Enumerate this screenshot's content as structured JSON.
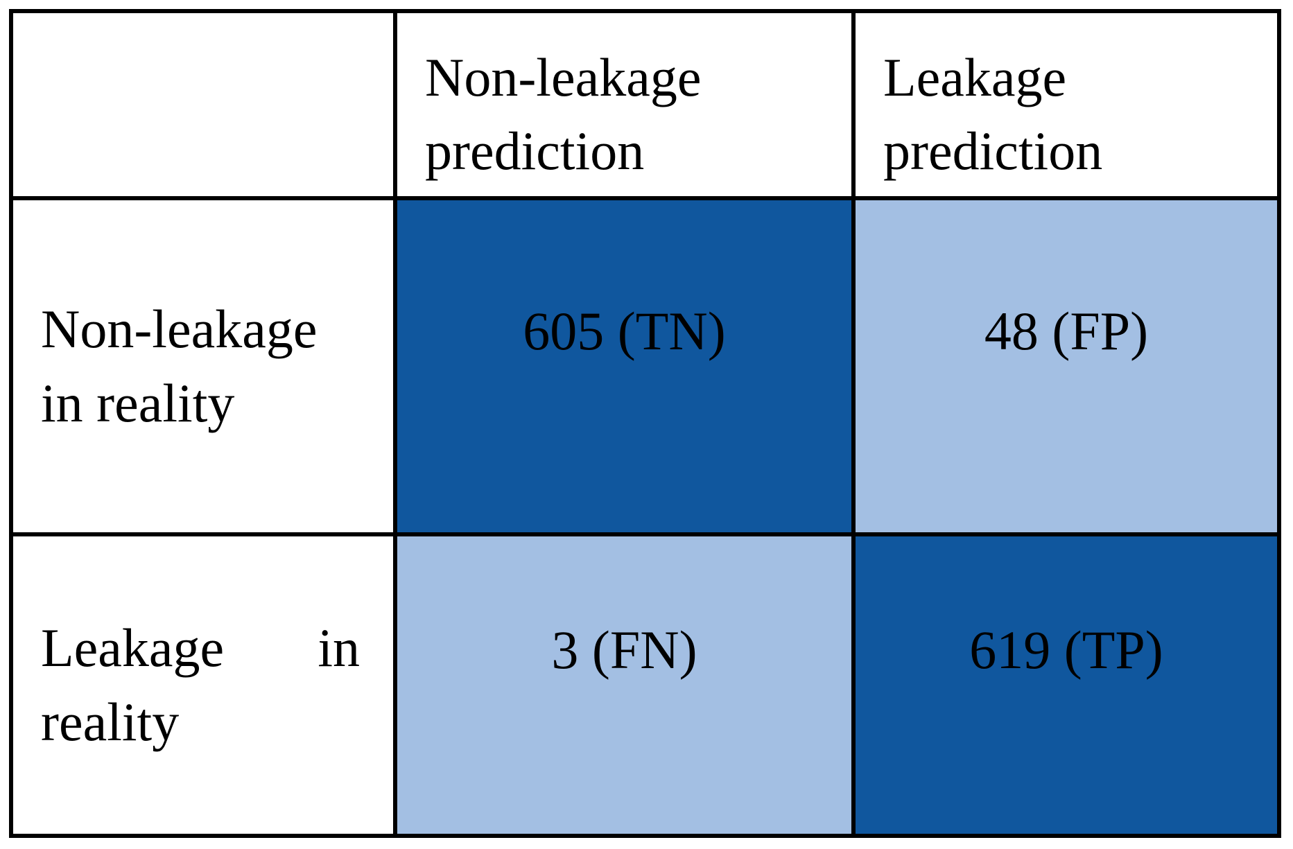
{
  "colors": {
    "dark_blue": "#10579E",
    "light_blue": "#A3BFE3",
    "border": "#000000",
    "text": "#000000",
    "background": "#FFFFFF"
  },
  "table": {
    "col_headers": [
      "Non-leakage prediction",
      "Leakage prediction"
    ],
    "row_headers": [
      "Non-leakage in reality",
      "Leakage in reality"
    ],
    "cells": [
      {
        "label": "605 (TN)",
        "tone": "dark"
      },
      {
        "label": "48 (FP)",
        "tone": "light"
      },
      {
        "label": "3 (FN)",
        "tone": "light"
      },
      {
        "label": "619 (TP)",
        "tone": "dark"
      }
    ]
  },
  "chart_data": {
    "type": "heatmap",
    "rows": [
      "Non-leakage in reality",
      "Leakage in reality"
    ],
    "columns": [
      "Non-leakage prediction",
      "Leakage prediction"
    ],
    "values": [
      [
        605,
        48
      ],
      [
        3,
        619
      ]
    ],
    "cell_labels": [
      [
        "605 (TN)",
        "48 (FP)"
      ],
      [
        "3 (FN)",
        "619 (TP)"
      ]
    ],
    "color_scale": {
      "high": "#10579E",
      "low": "#A3BFE3"
    }
  }
}
